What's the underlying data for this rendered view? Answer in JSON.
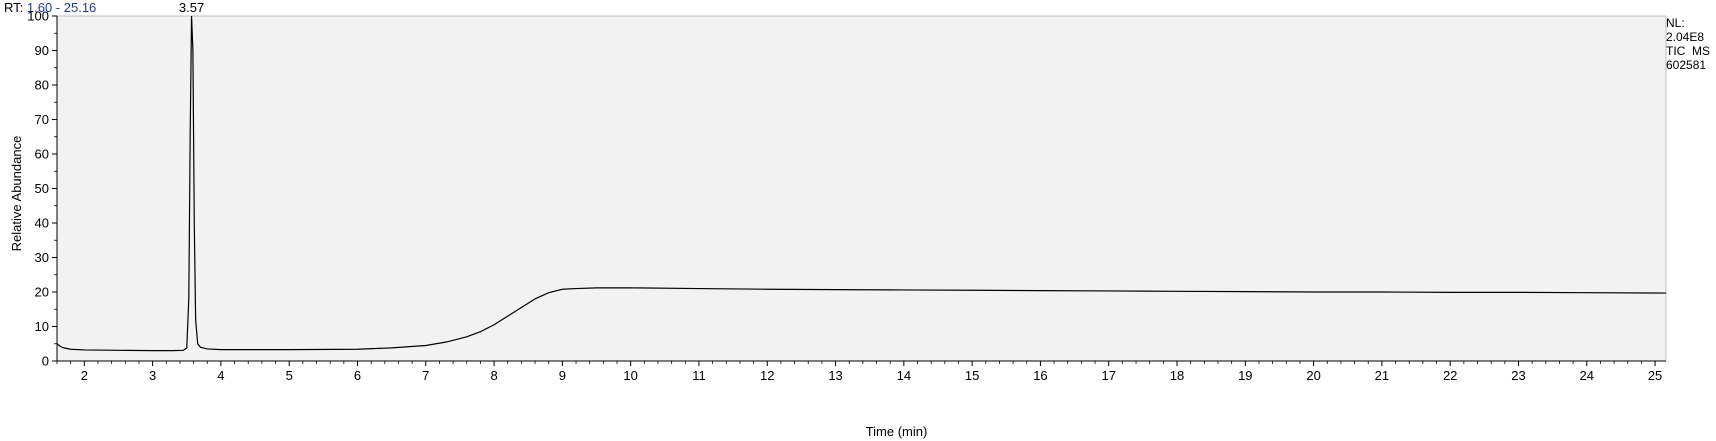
{
  "header": {
    "rt_key": "RT:",
    "rt_range": "1.60 - 25.16"
  },
  "info": {
    "nl_label": "NL:",
    "nl_value": "2.04E8",
    "trace_type": "TIC  MS",
    "sample_id": "602581"
  },
  "colors": {
    "plot_background": "#f2f2f2",
    "trace": "#000000",
    "rt_value": "#1f3a9e"
  },
  "chart_data": {
    "type": "line",
    "xlabel": "Time (min)",
    "ylabel": "Relative Abundance",
    "xlim": [
      1.6,
      25.16
    ],
    "ylim": [
      0,
      100
    ],
    "x_ticks": [
      "2",
      "3",
      "4",
      "5",
      "6",
      "7",
      "8",
      "9",
      "10",
      "11",
      "12",
      "13",
      "14",
      "15",
      "16",
      "17",
      "18",
      "19",
      "20",
      "21",
      "22",
      "23",
      "24",
      "25"
    ],
    "y_ticks": [
      "0",
      "10",
      "20",
      "30",
      "40",
      "50",
      "60",
      "70",
      "80",
      "90",
      "100"
    ],
    "peak_annotations": [
      {
        "label": "3.57",
        "x": 3.57,
        "y": 100
      }
    ],
    "series": [
      {
        "x": [
          1.6,
          1.65,
          1.7,
          1.8,
          2.0,
          2.5,
          3.0,
          3.3,
          3.45,
          3.5,
          3.53,
          3.55,
          3.57,
          3.59,
          3.61,
          3.63,
          3.66,
          3.7,
          3.8,
          4.0,
          5.0,
          6.0,
          6.5,
          7.0,
          7.3,
          7.6,
          7.8,
          8.0,
          8.2,
          8.4,
          8.6,
          8.8,
          9.0,
          9.2,
          9.5,
          10.0,
          11.0,
          12.0,
          13.0,
          14.0,
          15.0,
          16.0,
          17.0,
          18.0,
          19.0,
          20.0,
          21.0,
          22.0,
          23.0,
          24.0,
          25.16
        ],
        "y": [
          5,
          4.2,
          3.8,
          3.4,
          3.2,
          3.1,
          3.0,
          3.0,
          3.1,
          3.8,
          18,
          65,
          100,
          90,
          40,
          12,
          5,
          4.0,
          3.5,
          3.3,
          3.3,
          3.4,
          3.8,
          4.5,
          5.5,
          7.0,
          8.5,
          10.5,
          13.0,
          15.5,
          18.0,
          19.8,
          20.8,
          21.0,
          21.2,
          21.2,
          21.0,
          20.8,
          20.7,
          20.6,
          20.5,
          20.4,
          20.3,
          20.2,
          20.1,
          20.0,
          20.0,
          19.9,
          19.9,
          19.8,
          19.7
        ]
      }
    ]
  }
}
